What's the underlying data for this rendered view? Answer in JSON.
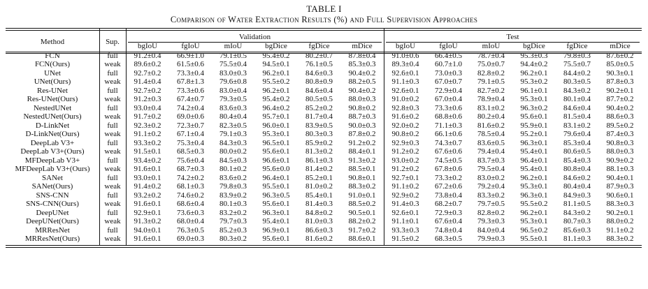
{
  "caption": {
    "label": "TABLE I",
    "title": "Comparison of Water Extraction Results (%) and Full Supervision Approaches"
  },
  "headers": {
    "method": "Method",
    "sup": "Sup.",
    "validation": "Validation",
    "test": "Test",
    "metrics": [
      "bgIoU",
      "fgIoU",
      "mIoU",
      "bgDice",
      "fgDice",
      "mDice",
      "bgIoU",
      "fgIoU",
      "mIoU",
      "bgDice",
      "fgDice",
      "mDice"
    ]
  },
  "rows": [
    {
      "method": "FCN",
      "sup": "full",
      "bold": false,
      "values": [
        "91.2±0.4",
        "66.9±1.0",
        "79.1±0.5",
        "95.4±0.2",
        "80.2±0.7",
        "87.8±0.4",
        "91.0±0.6",
        "66.4±0.5",
        "78.7±0.4",
        "95.3±0.3",
        "79.8±0.3",
        "87.6±0.2"
      ]
    },
    {
      "method": "FCN(Ours)",
      "sup": "weak",
      "bold": false,
      "values": [
        "89.6±0.2",
        "61.5±0.6",
        "75.5±0.4",
        "94.5±0.1",
        "76.1±0.5",
        "85.3±0.3",
        "89.3±0.4",
        "60.7±1.0",
        "75.0±0.7",
        "94.4±0.2",
        "75.5±0.7",
        "85.0±0.5"
      ]
    },
    {
      "method": "UNet",
      "sup": "full",
      "bold": false,
      "values": [
        "92.7±0.2",
        "73.3±0.4",
        "83.0±0.3",
        "96.2±0.1",
        "84.6±0.3",
        "90.4±0.2",
        "92.6±0.1",
        "73.0±0.3",
        "82.8±0.2",
        "96.2±0.1",
        "84.4±0.2",
        "90.3±0.1"
      ]
    },
    {
      "method": "UNet(Ours)",
      "sup": "weak",
      "bold": false,
      "values": [
        "91.4±0.4",
        "67.8±1.3",
        "79.6±0.8",
        "95.5±0.2",
        "80.8±0.9",
        "88.2±0.5",
        "91.1±0.3",
        "67.0±0.7",
        "79.1±0.5",
        "95.3±0.2",
        "80.3±0.5",
        "87.8±0.3"
      ]
    },
    {
      "method": "Res-UNet",
      "sup": "full",
      "bold": false,
      "values": [
        "92.7±0.2",
        "73.3±0.6",
        "83.0±0.4",
        "96.2±0.1",
        "84.6±0.4",
        "90.4±0.2",
        "92.6±0.1",
        "72.9±0.4",
        "82.7±0.2",
        "96.1±0.1",
        "84.3±0.2",
        "90.2±0.1"
      ]
    },
    {
      "method": "Res-UNet(Ours)",
      "sup": "weak",
      "bold": false,
      "values": [
        "91.2±0.3",
        "67.4±0.7",
        "79.3±0.5",
        "95.4±0.2",
        "80.5±0.5",
        "88.0±0.3",
        "91.0±0.2",
        "67.0±0.4",
        "78.9±0.4",
        "95.3±0.1",
        "80.1±0.4",
        "87.7±0.2"
      ]
    },
    {
      "method": "NestedUNet",
      "sup": "full",
      "bold": false,
      "values": [
        "93.0±0.4",
        "74.2±0.4",
        "83.6±0.3",
        "96.4±0.2",
        "85.2±0.2",
        "90.8±0.2",
        "92.8±0.3",
        "73.3±0.6",
        "83.1±0.2",
        "96.3±0.2",
        "84.6±0.4",
        "90.4±0.2"
      ]
    },
    {
      "method": "NestedUNet(Ours)",
      "sup": "weak",
      "bold": true,
      "values": [
        "91.7±0.2",
        "69.0±0.6",
        "80.4±0.4",
        "95.7±0.1",
        "81.7±0.4",
        "88.7±0.3",
        "91.6±0.2",
        "68.8±0.6",
        "80.2±0.4",
        "95.6±0.1",
        "81.5±0.4",
        "88.6±0.3"
      ]
    },
    {
      "method": "D-LinkNet",
      "sup": "full",
      "bold": false,
      "values": [
        "92.3±0.2",
        "72.3±0.7",
        "82.3±0.5",
        "96.0±0.1",
        "83.9±0.5",
        "90.0±0.3",
        "92.0±0.2",
        "71.1±0.3",
        "81.6±0.2",
        "95.9±0.1",
        "83.1±0.2",
        "89.5±0.2"
      ]
    },
    {
      "method": "D-LinkNet(Ours)",
      "sup": "weak",
      "bold": false,
      "values": [
        "91.1±0.2",
        "67.1±0.4",
        "79.1±0.3",
        "95.3±0.1",
        "80.3±0.3",
        "87.8±0.2",
        "90.8±0.2",
        "66.1±0.6",
        "78.5±0.4",
        "95.2±0.1",
        "79.6±0.4",
        "87.4±0.3"
      ]
    },
    {
      "method": "DeepLab V3+",
      "sup": "full",
      "bold": false,
      "values": [
        "93.3±0.2",
        "75.3±0.4",
        "84.3±0.3",
        "96.5±0.1",
        "85.9±0.2",
        "91.2±0.2",
        "92.9±0.3",
        "74.3±0.7",
        "83.6±0.5",
        "96.3±0.1",
        "85.3±0.4",
        "90.8±0.3"
      ]
    },
    {
      "method": "DeepLab V3+(Ours)",
      "sup": "weak",
      "bold": false,
      "values": [
        "91.5±0.1",
        "68.5±0.3",
        "80.0±0.2",
        "95.6±0.1",
        "81.3±0.2",
        "88.4±0.1",
        "91.2±0.2",
        "67.6±0.6",
        "79.4±0.4",
        "95.4±0.1",
        "80.6±0.5",
        "88.0±0.3"
      ]
    },
    {
      "method": "MFDeepLab V3+",
      "sup": "full",
      "bold": false,
      "values": [
        "93.4±0.2",
        "75.6±0.4",
        "84.5±0.3",
        "96.6±0.1",
        "86.1±0.3",
        "91.3±0.2",
        "93.0±0.2",
        "74.5±0.5",
        "83.7±0.3",
        "96.4±0.1",
        "85.4±0.3",
        "90.9±0.2"
      ]
    },
    {
      "method": "MFDeepLab V3+(Ours)",
      "sup": "weak",
      "bold": false,
      "values": [
        "91.6±0.1",
        "68.7±0.3",
        "80.1±0.2",
        "95.6±0.0",
        "81.4±0.2",
        "88.5±0.1",
        "91.2±0.2",
        "67.8±0.6",
        "79.5±0.4",
        "95.4±0.1",
        "80.8±0.4",
        "88.1±0.3"
      ]
    },
    {
      "method": "SANet",
      "sup": "full",
      "bold": false,
      "values": [
        "93.0±0.1",
        "74.2±0.2",
        "83.6±0.2",
        "96.4±0.1",
        "85.2±0.1",
        "90.8±0.1",
        "92.7±0.1",
        "73.3±0.2",
        "83.0±0.2",
        "96.2±0.1",
        "84.6±0.2",
        "90.4±0.1"
      ]
    },
    {
      "method": "SANet(Ours)",
      "sup": "weak",
      "bold": false,
      "values": [
        "91.4±0.2",
        "68.1±0.3",
        "79.8±0.3",
        "95.5±0.1",
        "81.0±0.2",
        "88.3±0.2",
        "91.1±0.2",
        "67.2±0.6",
        "79.2±0.4",
        "95.3±0.1",
        "80.4±0.4",
        "87.9±0.3"
      ]
    },
    {
      "method": "SNS-CNN",
      "sup": "full",
      "bold": false,
      "values": [
        "93.2±0.2",
        "74.6±0.2",
        "83.9±0.2",
        "96.3±0.5",
        "85.4±0.1",
        "91.0±0.1",
        "92.9±0.2",
        "73.8±0.4",
        "83.3±0.2",
        "96.3±0.1",
        "84.9±0.3",
        "90.6±0.1"
      ]
    },
    {
      "method": "SNS-CNN(Ours)",
      "sup": "weak",
      "bold": false,
      "values": [
        "91.6±0.1",
        "68.6±0.4",
        "80.1±0.3",
        "95.6±0.1",
        "81.4±0.3",
        "88.5±0.2",
        "91.4±0.3",
        "68.2±0.7",
        "79.7±0.5",
        "95.5±0.2",
        "81.1±0.5",
        "88.3±0.3"
      ]
    },
    {
      "method": "DeepUNet",
      "sup": "full",
      "bold": false,
      "values": [
        "92.9±0.1",
        "73.6±0.3",
        "83.2±0.2",
        "96.3±0.1",
        "84.8±0.2",
        "90.5±0.1",
        "92.6±0.1",
        "72.9±0.3",
        "82.8±0.2",
        "96.2±0.1",
        "84.3±0.2",
        "90.2±0.1"
      ]
    },
    {
      "method": "DeepUNet(Ours)",
      "sup": "weak",
      "bold": false,
      "values": [
        "91.3±0.2",
        "68.0±0.4",
        "79.7±0.3",
        "95.4±0.1",
        "81.0±0.3",
        "88.2±0.2",
        "91.1±0.1",
        "67.6±0.4",
        "79.3±0.3",
        "95.3±0.1",
        "80.7±0.3",
        "88.0±0.2"
      ]
    },
    {
      "method": "MRResNet",
      "sup": "full",
      "bold": true,
      "values": [
        "94.0±0.1",
        "76.3±0.5",
        "85.2±0.3",
        "96.9±0.1",
        "86.6±0.3",
        "91.7±0.2",
        "93.3±0.3",
        "74.8±0.4",
        "84.0±0.4",
        "96.5±0.2",
        "85.6±0.3",
        "91.1±0.2"
      ]
    },
    {
      "method": "MRResNet(Ours)",
      "sup": "weak",
      "bold": false,
      "values": [
        "91.6±0.1",
        "69.0±0.3",
        "80.3±0.2",
        "95.6±0.1",
        "81.6±0.2",
        "88.6±0.1",
        "91.5±0.2",
        "68.3±0.5",
        "79.9±0.3",
        "95.5±0.1",
        "81.1±0.3",
        "88.3±0.2"
      ]
    }
  ]
}
